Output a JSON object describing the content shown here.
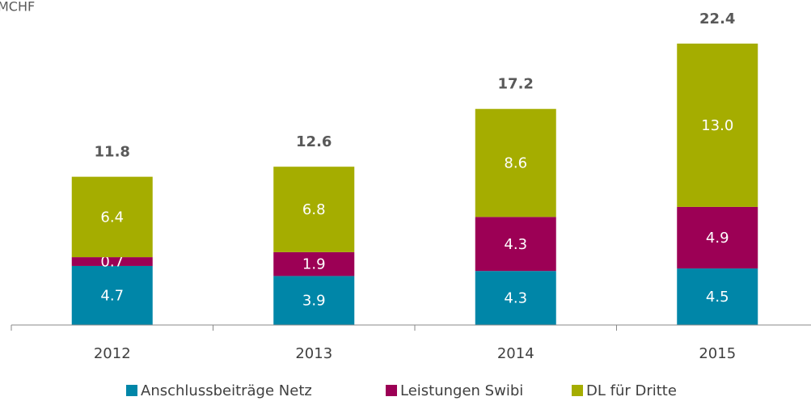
{
  "chart_data": {
    "type": "stacked_bar",
    "ylabel": "MCHF",
    "categories": [
      "2012",
      "2013",
      "2014",
      "2015"
    ],
    "series": [
      {
        "name": "Anschlussbeiträge Netz",
        "color": "#0086a8",
        "values": [
          4.7,
          3.9,
          4.3,
          4.5
        ]
      },
      {
        "name": "Leistungen Swibi",
        "color": "#9c0055",
        "values": [
          0.7,
          1.9,
          4.3,
          4.9
        ]
      },
      {
        "name": "DL für Dritte",
        "color": "#a5ad00",
        "values": [
          6.4,
          6.8,
          8.6,
          13
        ],
        "value_labels": [
          "6.4",
          "6.8",
          "8.6",
          "13.0"
        ]
      }
    ],
    "totals": [
      11.8,
      12.6,
      17.2,
      22.4
    ],
    "ylim": [
      0,
      25
    ]
  }
}
